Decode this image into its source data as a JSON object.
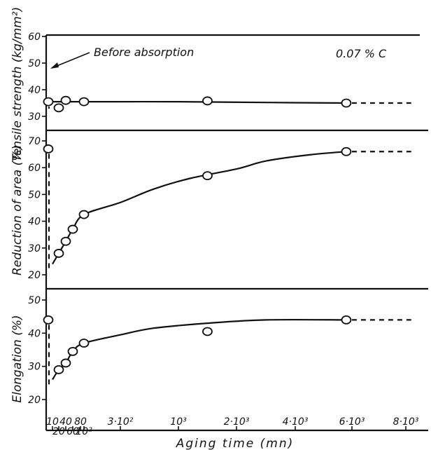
{
  "chart_data": {
    "type": "line",
    "x_axis": {
      "label": "Aging time (mn)",
      "tick_values": [
        10,
        20,
        40,
        60,
        80,
        100,
        300,
        1000,
        2000,
        4000,
        6000,
        8000
      ],
      "tick_labels": [
        "10",
        "20",
        "40",
        "60",
        "80",
        "10²",
        "3·10²",
        "10³",
        "2·10³",
        "4·10³",
        "6·10³",
        "8·10³"
      ],
      "tick_rows": [
        1,
        2,
        1,
        2,
        1,
        2,
        1,
        1,
        1,
        1,
        1,
        1
      ]
    },
    "annotations": {
      "arrow_text": "Before absorption",
      "carbon": "0.07 % C"
    },
    "panels": [
      {
        "id": "tensile",
        "ylabel": "Tensile strength (kg/mm²)",
        "ylim": [
          25,
          62
        ],
        "yticks": [
          30,
          40,
          50,
          60
        ],
        "before_value": 35.5,
        "points": [
          [
            10,
            35.5
          ],
          [
            20,
            33.2
          ],
          [
            40,
            36
          ],
          [
            100,
            35.5
          ],
          [
            1500,
            35.8
          ],
          [
            5800,
            35
          ]
        ],
        "curve": [
          [
            10,
            35.5
          ],
          [
            300,
            35.5
          ],
          [
            1000,
            35.5
          ],
          [
            3000,
            35.2
          ],
          [
            5800,
            35
          ]
        ],
        "extrapolated": [
          [
            5800,
            35
          ],
          [
            8200,
            35
          ]
        ]
      },
      {
        "id": "reduction",
        "ylabel": "Reduction of area (%)",
        "ylim": [
          15,
          74
        ],
        "yticks": [
          20,
          30,
          40,
          50,
          60,
          70
        ],
        "before_value": 67,
        "points": [
          [
            10,
            67
          ],
          [
            20,
            28
          ],
          [
            40,
            32.5
          ],
          [
            60,
            37
          ],
          [
            100,
            42.5
          ],
          [
            1500,
            57
          ],
          [
            5800,
            66
          ]
        ],
        "curve": [
          [
            10,
            24
          ],
          [
            20,
            28
          ],
          [
            40,
            32.5
          ],
          [
            60,
            37
          ],
          [
            100,
            42.5
          ],
          [
            300,
            47
          ],
          [
            700,
            52
          ],
          [
            1200,
            56
          ],
          [
            2000,
            59.5
          ],
          [
            3000,
            62.5
          ],
          [
            4500,
            64.8
          ],
          [
            5800,
            66
          ]
        ],
        "extrapolated": [
          [
            5800,
            66
          ],
          [
            8200,
            66
          ]
        ]
      },
      {
        "id": "elongation",
        "ylabel": "Elongation (%)",
        "ylim": [
          8,
          56
        ],
        "yticks": [
          20,
          30,
          40,
          50
        ],
        "before_value": 44,
        "points": [
          [
            10,
            44
          ],
          [
            20,
            29
          ],
          [
            40,
            31
          ],
          [
            60,
            34.5
          ],
          [
            100,
            37
          ],
          [
            1500,
            40.5
          ],
          [
            5800,
            44
          ]
        ],
        "curve": [
          [
            10,
            26
          ],
          [
            20,
            29
          ],
          [
            40,
            31
          ],
          [
            60,
            34.5
          ],
          [
            100,
            37
          ],
          [
            300,
            39.5
          ],
          [
            700,
            41.5
          ],
          [
            1500,
            43
          ],
          [
            3000,
            44
          ],
          [
            5800,
            44
          ]
        ],
        "extrapolated": [
          [
            5800,
            44
          ],
          [
            8200,
            44
          ]
        ]
      }
    ]
  }
}
